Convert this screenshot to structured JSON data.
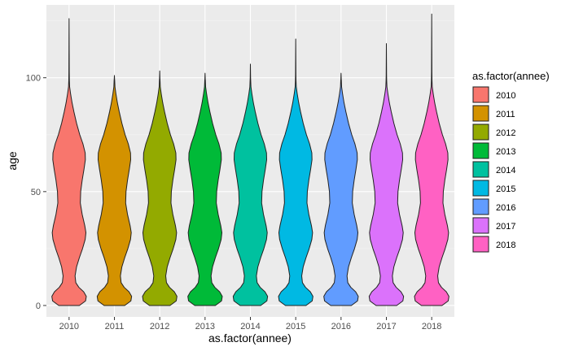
{
  "chart_data": {
    "type": "violin",
    "xlabel": "as.factor(annee)",
    "ylabel": "age",
    "categories": [
      "2010",
      "2011",
      "2012",
      "2013",
      "2014",
      "2015",
      "2016",
      "2017",
      "2018"
    ],
    "ylim": [
      -5,
      132
    ],
    "yticks": [
      0,
      50,
      100
    ],
    "grid": true,
    "legend": {
      "title": "as.factor(annee)",
      "placement": "right",
      "entries": [
        "2010",
        "2011",
        "2012",
        "2013",
        "2014",
        "2015",
        "2016",
        "2017",
        "2018"
      ]
    },
    "series": [
      {
        "category": "2010",
        "color": "#F8766D",
        "min": 0,
        "max": 126
      },
      {
        "category": "2011",
        "color": "#D39200",
        "min": 0,
        "max": 101
      },
      {
        "category": "2012",
        "color": "#93AA00",
        "min": 0,
        "max": 103
      },
      {
        "category": "2013",
        "color": "#00BA38",
        "min": 0,
        "max": 102
      },
      {
        "category": "2014",
        "color": "#00C19F",
        "min": 0,
        "max": 106
      },
      {
        "category": "2015",
        "color": "#00B9E3",
        "min": 0,
        "max": 117
      },
      {
        "category": "2016",
        "color": "#619CFF",
        "min": 0,
        "max": 102
      },
      {
        "category": "2017",
        "color": "#DB72FB",
        "min": 0,
        "max": 115
      },
      {
        "category": "2018",
        "color": "#FF61C3",
        "min": 0,
        "max": 128
      }
    ],
    "density_profile": [
      [
        0,
        0.55
      ],
      [
        2,
        0.88
      ],
      [
        4,
        0.92
      ],
      [
        6,
        0.78
      ],
      [
        8,
        0.52
      ],
      [
        10,
        0.36
      ],
      [
        13,
        0.32
      ],
      [
        17,
        0.4
      ],
      [
        21,
        0.55
      ],
      [
        25,
        0.72
      ],
      [
        29,
        0.86
      ],
      [
        32,
        0.9
      ],
      [
        35,
        0.84
      ],
      [
        40,
        0.7
      ],
      [
        45,
        0.6
      ],
      [
        50,
        0.62
      ],
      [
        55,
        0.7
      ],
      [
        60,
        0.8
      ],
      [
        64,
        0.87
      ],
      [
        67,
        0.86
      ],
      [
        71,
        0.74
      ],
      [
        75,
        0.57
      ],
      [
        80,
        0.4
      ],
      [
        85,
        0.26
      ],
      [
        89,
        0.16
      ],
      [
        93,
        0.08
      ],
      [
        96,
        0.03
      ],
      [
        99,
        0.015
      ]
    ]
  }
}
